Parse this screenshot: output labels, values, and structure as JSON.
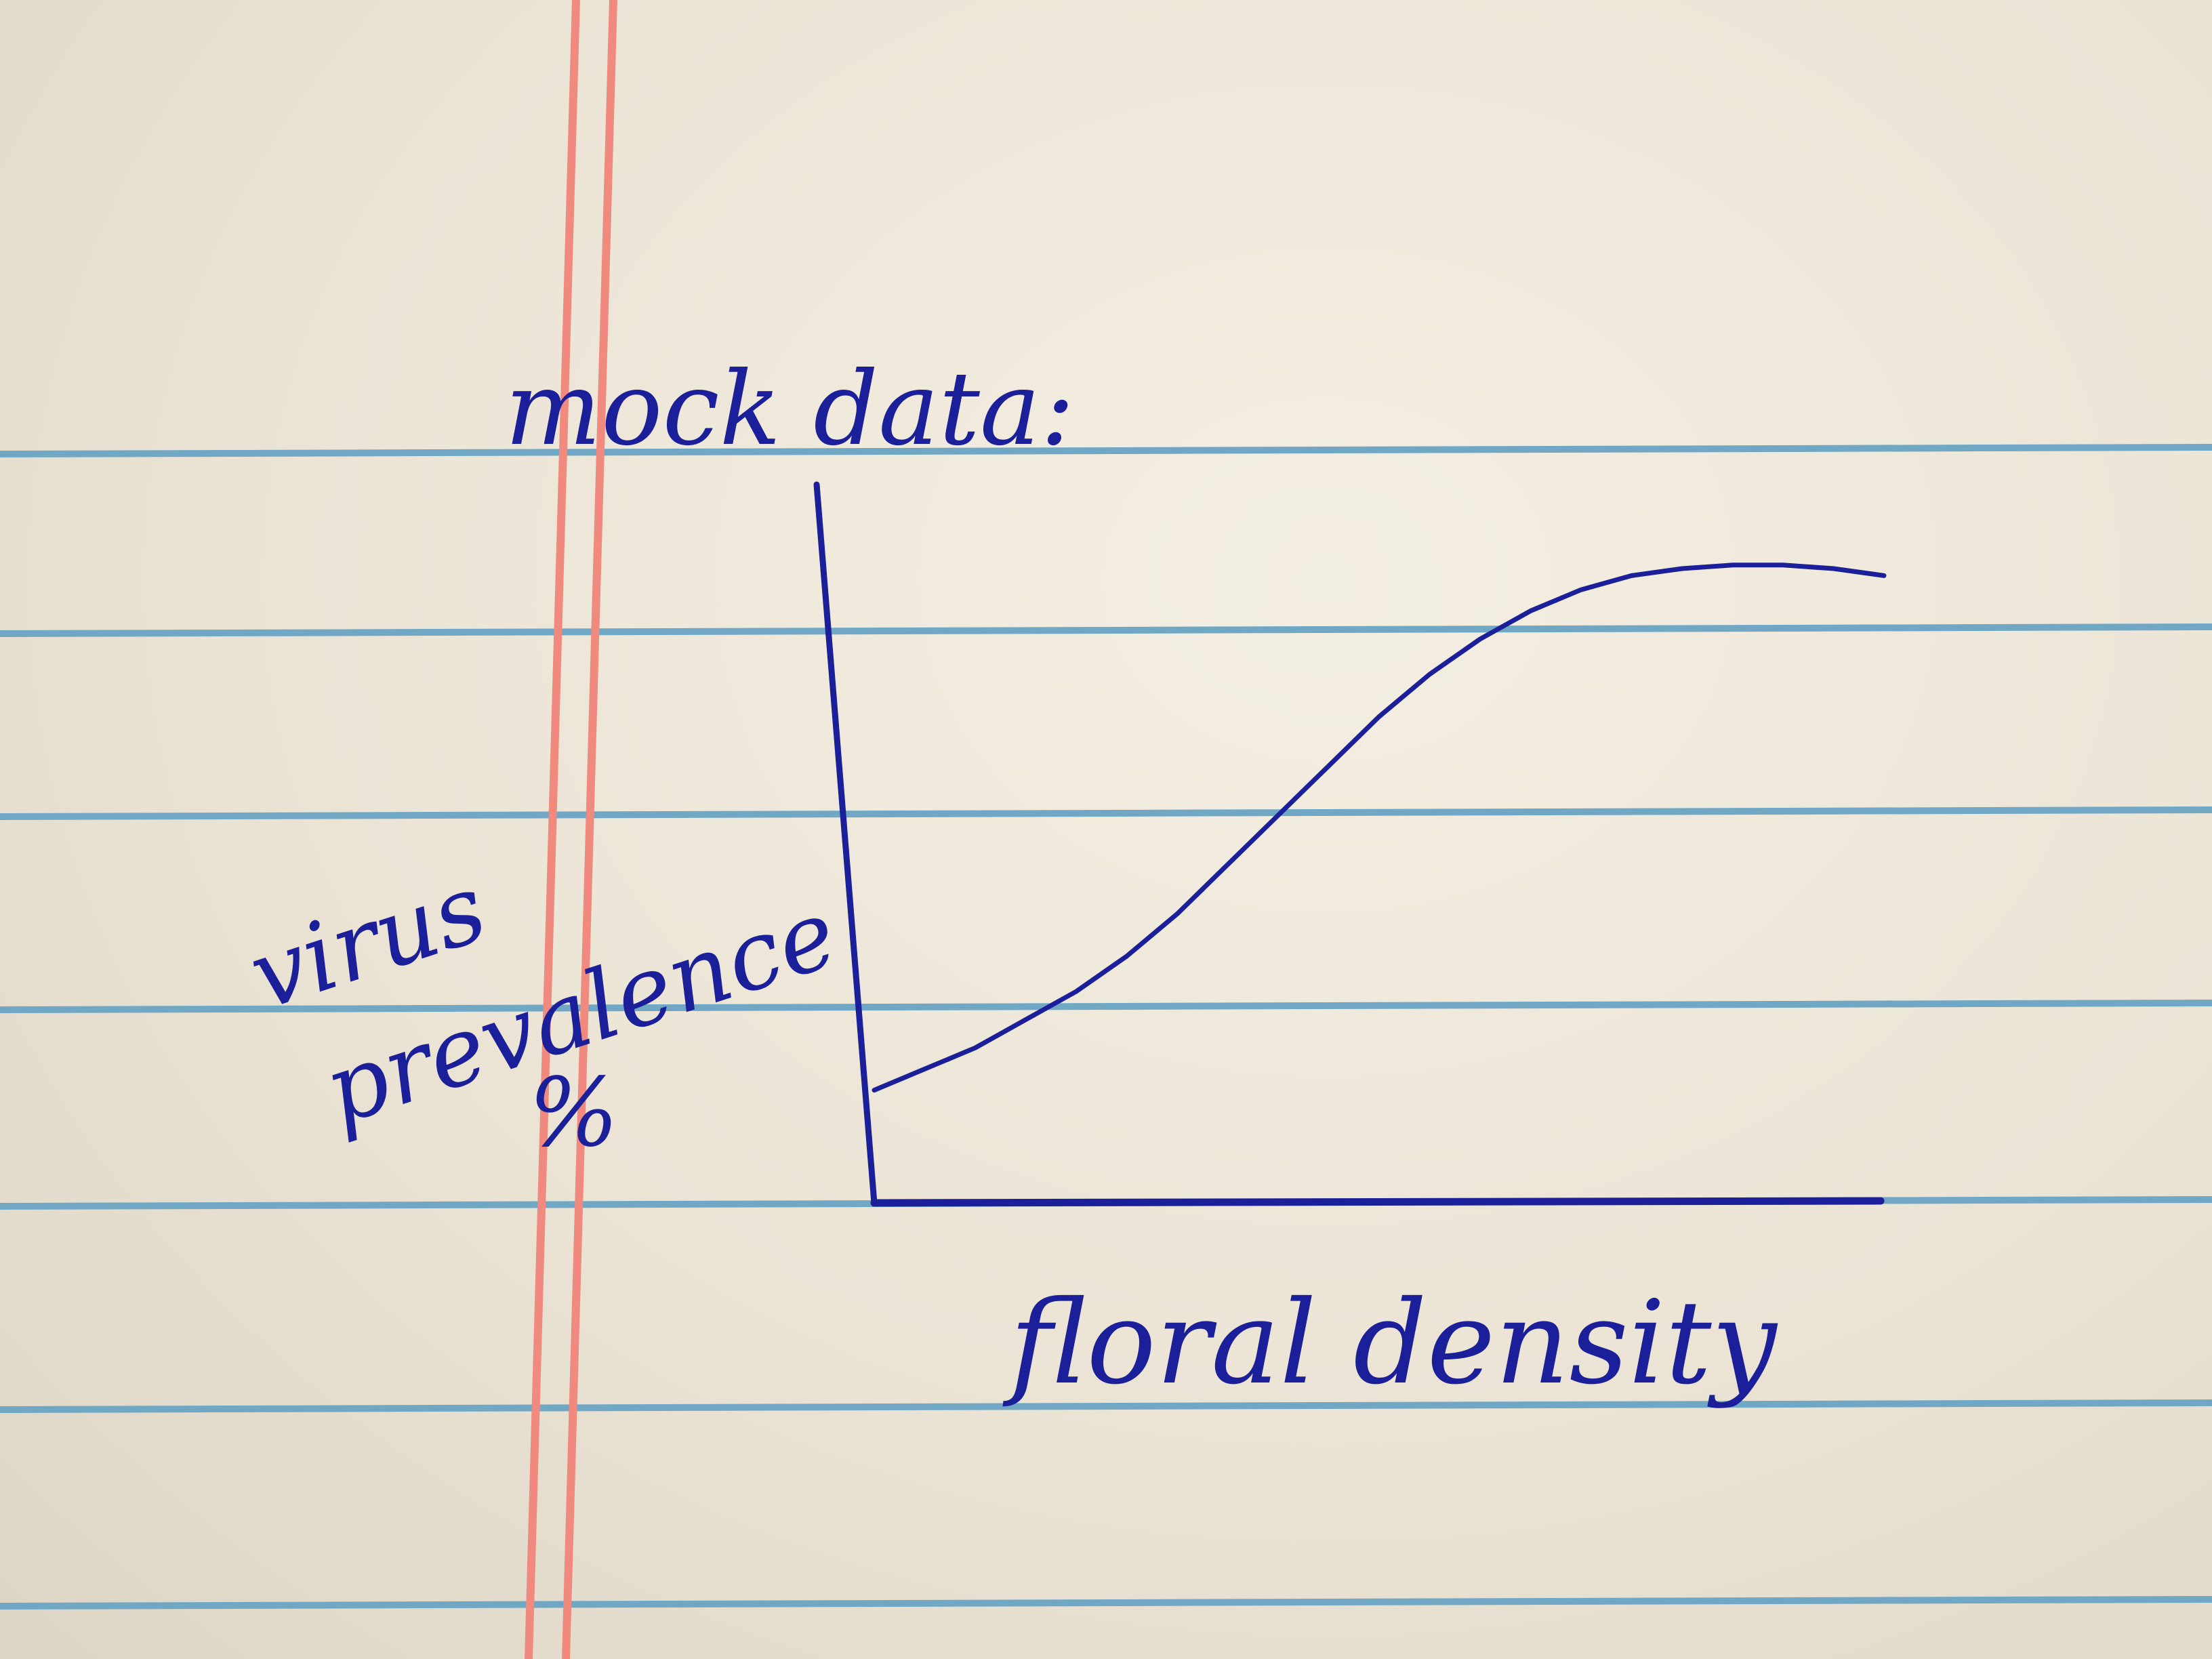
{
  "ink_color": "#1c1f9a",
  "rule_color": "#6fa7c4",
  "margin_color": "#f08a7e",
  "chart_data": {
    "type": "line",
    "title": "mock data:",
    "xlabel": "floral density",
    "ylabel_lines": [
      "virus",
      "prevalence",
      "%"
    ],
    "x_ticks": false,
    "y_ticks": false,
    "grid": false,
    "series": [
      {
        "x": [
          0,
          0.05,
          0.1,
          0.15,
          0.2,
          0.25,
          0.3,
          0.35,
          0.4,
          0.45,
          0.5,
          0.55,
          0.6,
          0.65,
          0.7,
          0.75,
          0.8,
          0.85,
          0.9,
          0.95,
          1.0
        ],
        "y": [
          0.16,
          0.19,
          0.22,
          0.26,
          0.3,
          0.35,
          0.41,
          0.48,
          0.55,
          0.62,
          0.69,
          0.75,
          0.8,
          0.84,
          0.87,
          0.89,
          0.9,
          0.905,
          0.905,
          0.9,
          0.89
        ]
      }
    ]
  }
}
